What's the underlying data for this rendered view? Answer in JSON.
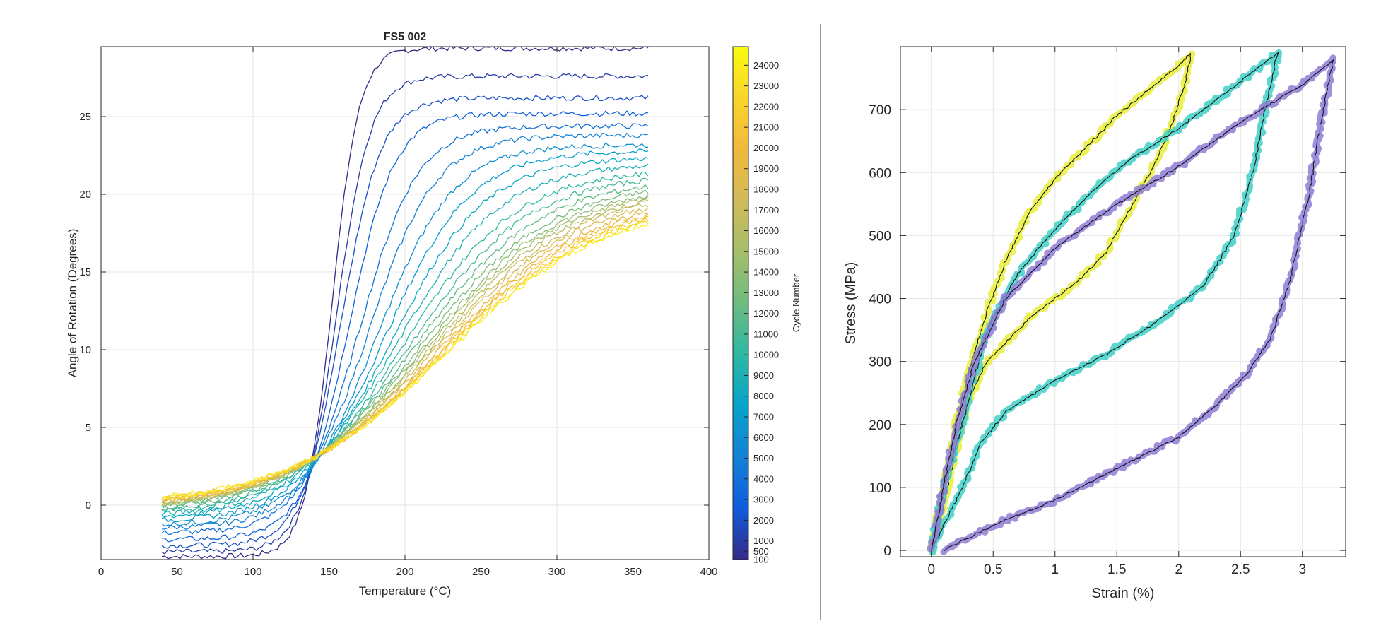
{
  "chart_data": [
    {
      "type": "line",
      "title": "FS5 002",
      "xlabel": "Temperature (°C)",
      "ylabel": "Angle of Rotation (Degrees)",
      "xlim": [
        0,
        400
      ],
      "ylim": [
        -3.5,
        29.5
      ],
      "xticks": [
        0,
        50,
        100,
        150,
        200,
        250,
        300,
        350,
        400
      ],
      "yticks": [
        0,
        5,
        10,
        15,
        20,
        25
      ],
      "grid": true,
      "colorbar": {
        "label": "Cycle Number",
        "range": [
          100,
          24900
        ],
        "colormap": "parula",
        "ticks": [
          100,
          500,
          1000,
          2000,
          3000,
          4000,
          5000,
          6000,
          7000,
          8000,
          9000,
          10000,
          11000,
          12000,
          13000,
          14000,
          15000,
          16000,
          17000,
          18000,
          19000,
          20000,
          21000,
          22000,
          23000,
          24000
        ]
      },
      "curve_model": "sigmoidal rise from about 40 °C to about 360 °C; one curve per cycle, colored by cycle number",
      "series": [
        {
          "cycle": 100,
          "y0": -3.3,
          "ymax": 29.4,
          "t_mid": 152,
          "width": 9
        },
        {
          "cycle": 1000,
          "y0": -3.0,
          "ymax": 27.6,
          "t_mid": 155,
          "width": 11
        },
        {
          "cycle": 2000,
          "y0": -2.6,
          "ymax": 26.2,
          "t_mid": 158,
          "width": 13
        },
        {
          "cycle": 3000,
          "y0": -2.2,
          "ymax": 25.2,
          "t_mid": 163,
          "width": 15
        },
        {
          "cycle": 4000,
          "y0": -1.8,
          "ymax": 24.4,
          "t_mid": 170,
          "width": 19
        },
        {
          "cycle": 5000,
          "y0": -1.5,
          "ymax": 23.8,
          "t_mid": 176,
          "width": 22
        },
        {
          "cycle": 6000,
          "y0": -1.3,
          "ymax": 23.2,
          "t_mid": 182,
          "width": 25
        },
        {
          "cycle": 7000,
          "y0": -1.1,
          "ymax": 22.8,
          "t_mid": 187,
          "width": 28
        },
        {
          "cycle": 8000,
          "y0": -0.9,
          "ymax": 22.4,
          "t_mid": 192,
          "width": 31
        },
        {
          "cycle": 9000,
          "y0": -0.8,
          "ymax": 22.0,
          "t_mid": 196,
          "width": 34
        },
        {
          "cycle": 10000,
          "y0": -0.7,
          "ymax": 21.6,
          "t_mid": 200,
          "width": 37
        },
        {
          "cycle": 11000,
          "y0": -0.6,
          "ymax": 21.3,
          "t_mid": 204,
          "width": 39
        },
        {
          "cycle": 12000,
          "y0": -0.5,
          "ymax": 21.0,
          "t_mid": 207,
          "width": 41
        },
        {
          "cycle": 13000,
          "y0": -0.4,
          "ymax": 20.8,
          "t_mid": 210,
          "width": 43
        },
        {
          "cycle": 14000,
          "y0": -0.4,
          "ymax": 20.6,
          "t_mid": 212,
          "width": 44
        },
        {
          "cycle": 15000,
          "y0": -0.3,
          "ymax": 20.5,
          "t_mid": 214,
          "width": 45
        },
        {
          "cycle": 16000,
          "y0": -0.3,
          "ymax": 20.4,
          "t_mid": 216,
          "width": 46
        },
        {
          "cycle": 17000,
          "y0": -0.3,
          "ymax": 20.3,
          "t_mid": 218,
          "width": 47
        },
        {
          "cycle": 18000,
          "y0": -0.2,
          "ymax": 20.2,
          "t_mid": 220,
          "width": 48
        },
        {
          "cycle": 19000,
          "y0": -0.2,
          "ymax": 20.0,
          "t_mid": 222,
          "width": 49
        },
        {
          "cycle": 20000,
          "y0": -0.2,
          "ymax": 19.9,
          "t_mid": 223,
          "width": 50
        },
        {
          "cycle": 21000,
          "y0": -0.1,
          "ymax": 19.8,
          "t_mid": 224,
          "width": 51
        },
        {
          "cycle": 22000,
          "y0": -0.1,
          "ymax": 19.7,
          "t_mid": 225,
          "width": 51
        },
        {
          "cycle": 23000,
          "y0": -0.1,
          "ymax": 19.6,
          "t_mid": 226,
          "width": 52
        },
        {
          "cycle": 24000,
          "y0": 0.0,
          "ymax": 19.5,
          "t_mid": 227,
          "width": 52
        }
      ]
    },
    {
      "type": "line",
      "title": "",
      "xlabel": "Strain (%)",
      "ylabel": "Stress (MPa)",
      "xlim": [
        -0.25,
        3.35
      ],
      "ylim": [
        -10,
        800
      ],
      "xticks": [
        0,
        0.5,
        1,
        1.5,
        2,
        2.5,
        3
      ],
      "xtick_labels": [
        "0",
        "0.5",
        "1",
        "1.5",
        "2",
        "2.5",
        "3"
      ],
      "yticks": [
        0,
        100,
        200,
        300,
        400,
        500,
        600,
        700
      ],
      "grid": true,
      "series": [
        {
          "color": "#e8ef3a",
          "loading": [
            [
              0,
              0
            ],
            [
              0.1,
              100
            ],
            [
              0.2,
              200
            ],
            [
              0.3,
              280
            ],
            [
              0.45,
              380
            ],
            [
              0.6,
              460
            ],
            [
              0.8,
              540
            ],
            [
              1.0,
              590
            ],
            [
              1.25,
              640
            ],
            [
              1.5,
              690
            ],
            [
              1.75,
              730
            ],
            [
              2.0,
              770
            ],
            [
              2.1,
              790
            ]
          ],
          "unloading": [
            [
              2.1,
              790
            ],
            [
              2.05,
              740
            ],
            [
              1.95,
              680
            ],
            [
              1.8,
              610
            ],
            [
              1.6,
              540
            ],
            [
              1.4,
              470
            ],
            [
              1.2,
              430
            ],
            [
              1.0,
              400
            ],
            [
              0.8,
              370
            ],
            [
              0.6,
              330
            ],
            [
              0.45,
              300
            ],
            [
              0.3,
              240
            ],
            [
              0.2,
              160
            ],
            [
              0.1,
              70
            ],
            [
              0,
              0
            ]
          ]
        },
        {
          "color": "#3fd0c8",
          "loading": [
            [
              0,
              0
            ],
            [
              0.1,
              100
            ],
            [
              0.25,
              200
            ],
            [
              0.45,
              350
            ],
            [
              0.7,
              440
            ],
            [
              1.0,
              510
            ],
            [
              1.3,
              570
            ],
            [
              1.6,
              620
            ],
            [
              2.0,
              670
            ],
            [
              2.4,
              730
            ],
            [
              2.8,
              790
            ]
          ],
          "unloading": [
            [
              2.8,
              790
            ],
            [
              2.7,
              700
            ],
            [
              2.6,
              600
            ],
            [
              2.45,
              500
            ],
            [
              2.2,
              420
            ],
            [
              1.8,
              360
            ],
            [
              1.4,
              310
            ],
            [
              1.0,
              270
            ],
            [
              0.6,
              220
            ],
            [
              0.4,
              170
            ],
            [
              0.25,
              100
            ],
            [
              0.1,
              40
            ],
            [
              0,
              0
            ]
          ]
        },
        {
          "color": "#8e7bd6",
          "loading": [
            [
              0,
              0
            ],
            [
              0.1,
              100
            ],
            [
              0.2,
              200
            ],
            [
              0.35,
              300
            ],
            [
              0.6,
              400
            ],
            [
              1.0,
              480
            ],
            [
              1.5,
              550
            ],
            [
              2.0,
              610
            ],
            [
              2.5,
              680
            ],
            [
              3.0,
              740
            ],
            [
              3.25,
              780
            ]
          ],
          "unloading": [
            [
              3.25,
              780
            ],
            [
              3.15,
              680
            ],
            [
              3.05,
              560
            ],
            [
              2.9,
              430
            ],
            [
              2.75,
              340
            ],
            [
              2.55,
              280
            ],
            [
              2.3,
              230
            ],
            [
              2.0,
              180
            ],
            [
              1.5,
              130
            ],
            [
              1.0,
              80
            ],
            [
              0.5,
              40
            ],
            [
              0.1,
              0
            ]
          ]
        }
      ]
    }
  ]
}
